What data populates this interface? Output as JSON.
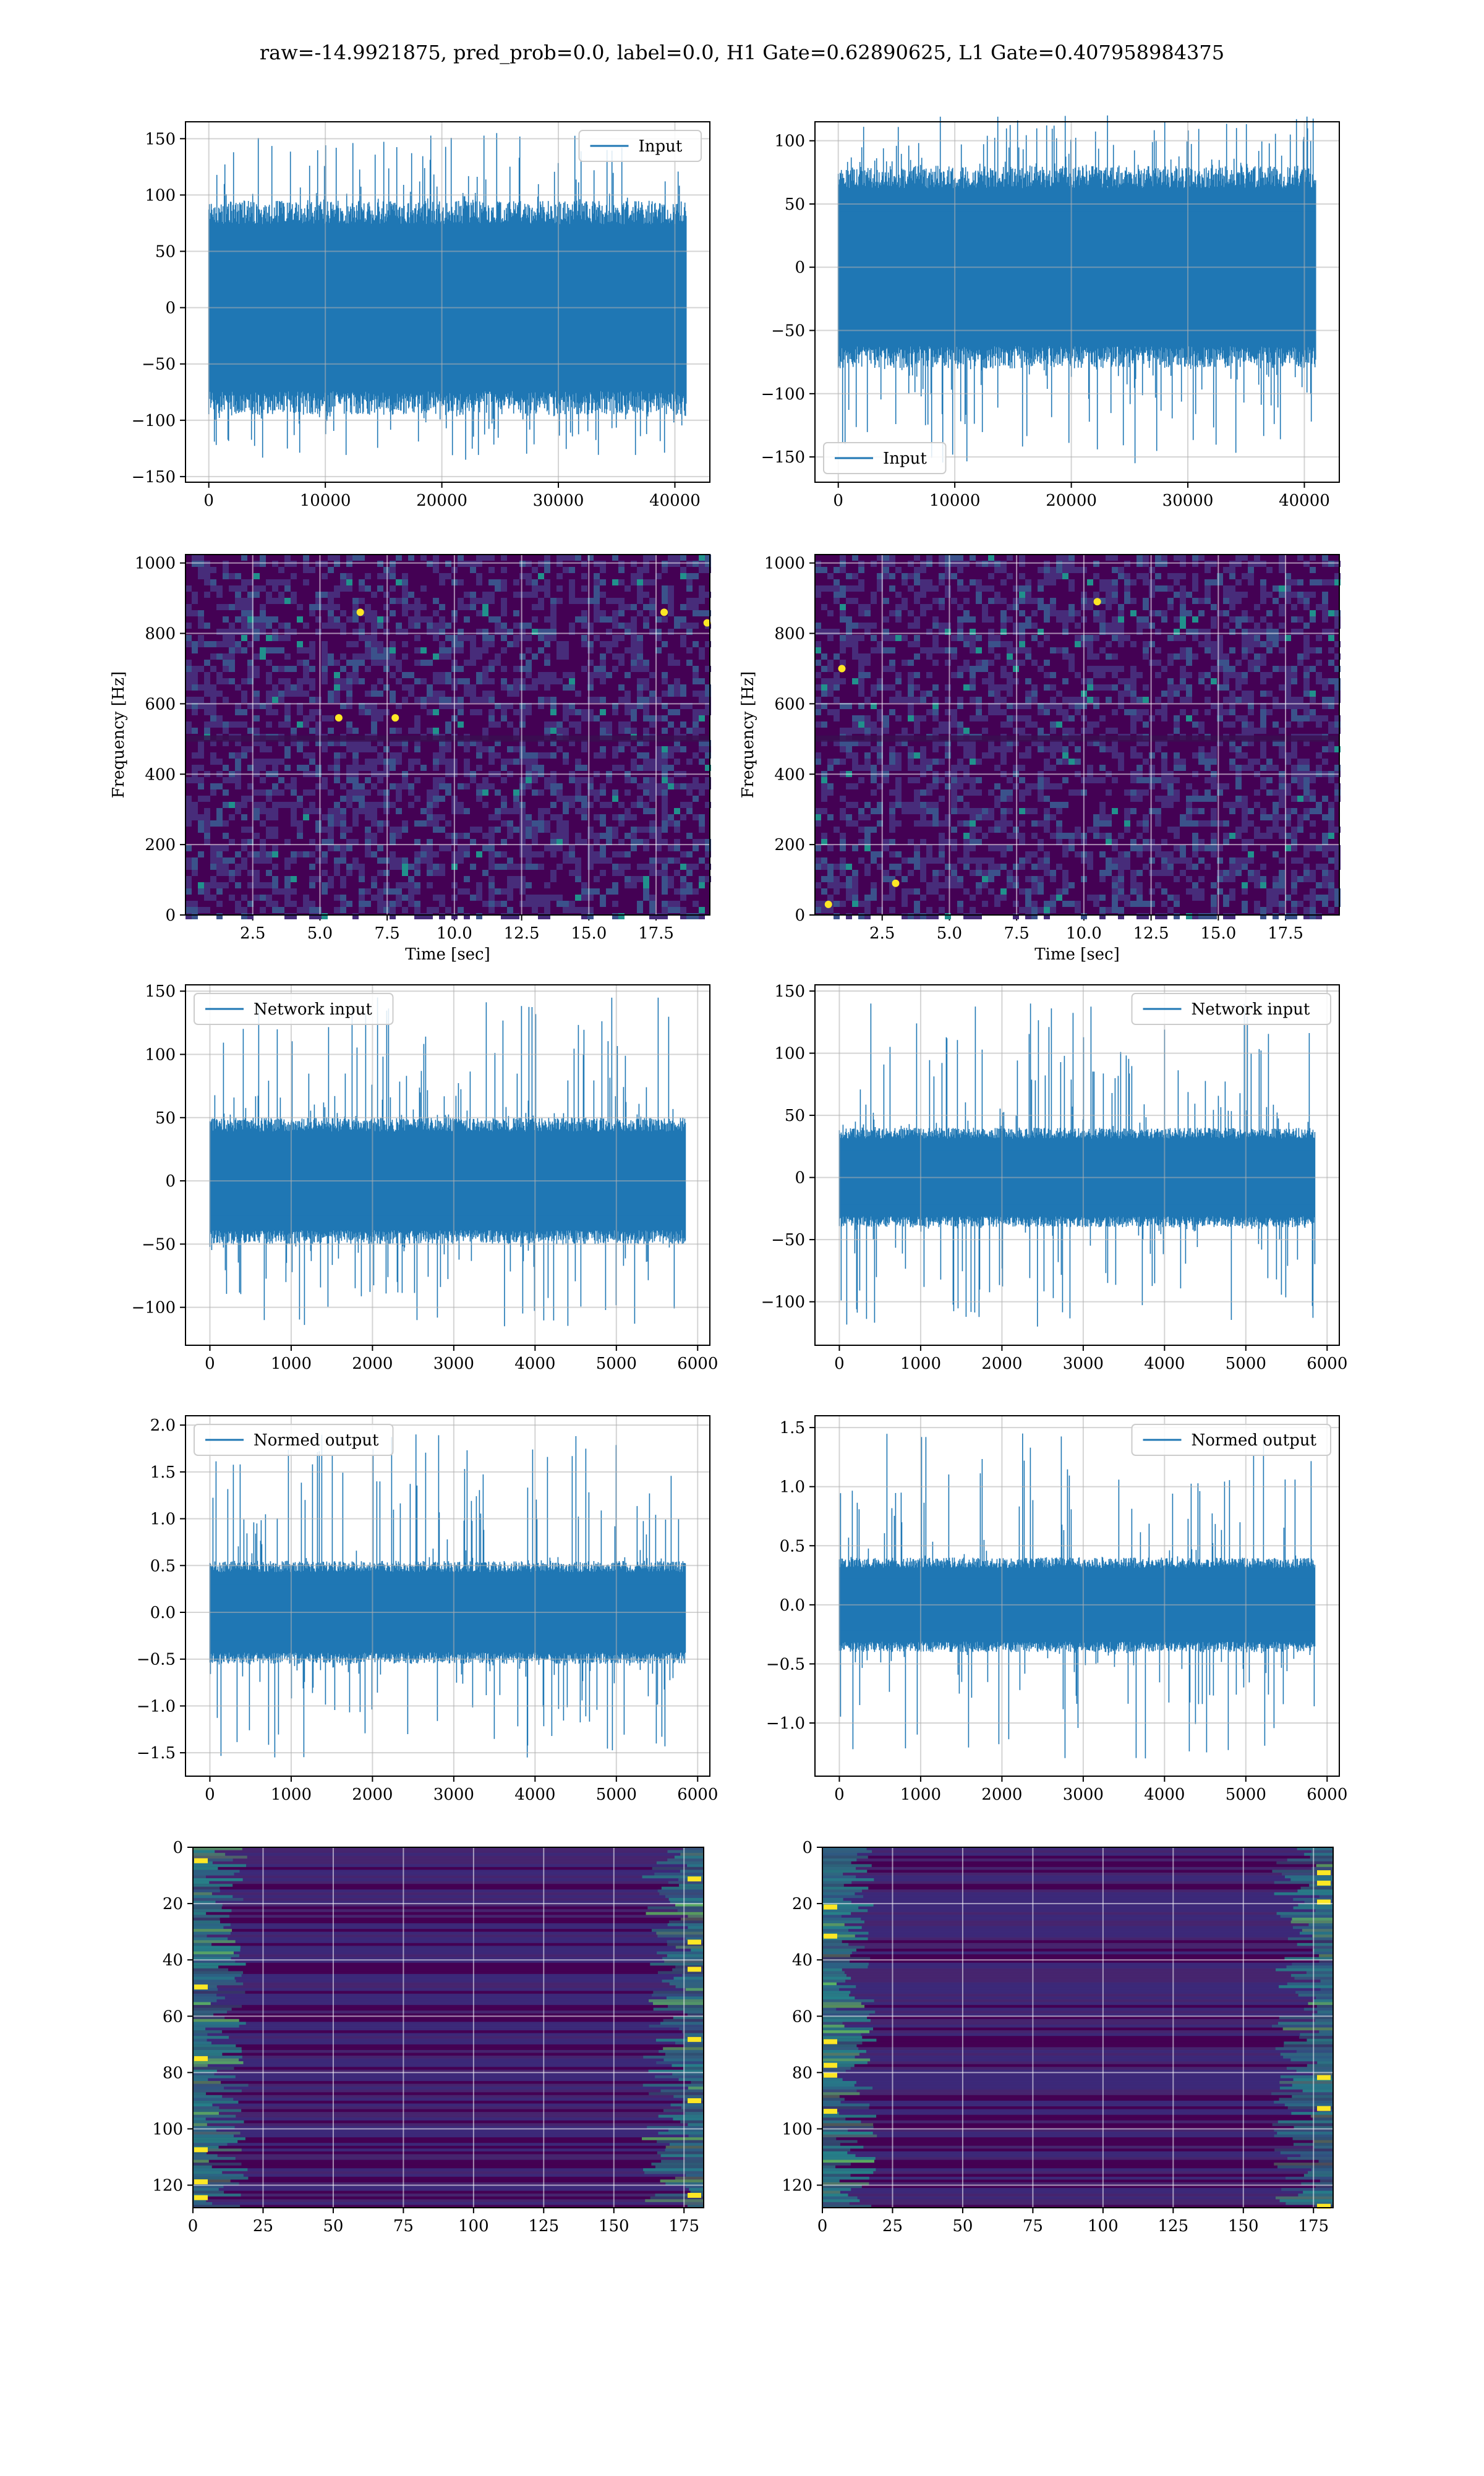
{
  "figure": {
    "suptitle": "raw=-14.9921875, pred_prob=0.0, label=0.0, H1 Gate=0.62890625, L1 Gate=0.407958984375"
  },
  "colors": {
    "line": "#1f77b4",
    "grid": "#b0b0b0",
    "viridis": [
      "#440154",
      "#3b528b",
      "#21918c",
      "#5ec962",
      "#fde725"
    ]
  },
  "chart_data": [
    {
      "id": "h1-input",
      "type": "line",
      "series": [
        {
          "name": "Input",
          "style": "dense noise",
          "n": 40960,
          "y_typical_range": [
            -95,
            95
          ],
          "y_min": -135,
          "y_max": 155
        }
      ],
      "xlim": [
        -2000,
        43000
      ],
      "ylim": [
        -155,
        165
      ],
      "xticks": [
        0,
        10000,
        20000,
        30000,
        40000
      ],
      "yticks": [
        -150,
        -100,
        -50,
        0,
        50,
        100,
        150
      ],
      "legend": "upper right",
      "grid": true,
      "xlabel": "",
      "ylabel": ""
    },
    {
      "id": "l1-input",
      "type": "line",
      "series": [
        {
          "name": "Input",
          "style": "dense noise",
          "n": 40960,
          "y_typical_range": [
            -80,
            80
          ],
          "y_min": -155,
          "y_max": 120
        }
      ],
      "xlim": [
        -2000,
        43000
      ],
      "ylim": [
        -170,
        115
      ],
      "xticks": [
        0,
        10000,
        20000,
        30000,
        40000
      ],
      "yticks": [
        -150,
        -100,
        -50,
        0,
        50,
        100
      ],
      "legend": "lower left",
      "grid": true,
      "xlabel": "",
      "ylabel": ""
    },
    {
      "id": "h1-spectrogram",
      "type": "heatmap",
      "colormap": "viridis",
      "xlim": [
        0,
        19.5
      ],
      "ylim": [
        0,
        1024
      ],
      "xticks": [
        2.5,
        5.0,
        7.5,
        10.0,
        12.5,
        15.0,
        17.5
      ],
      "yticks": [
        0,
        200,
        400,
        600,
        800,
        1000
      ],
      "xlabel": "Time [sec]",
      "ylabel": "Frequency [Hz]",
      "grid": true,
      "hot_spots": [
        [
          6.5,
          860
        ],
        [
          7.8,
          560
        ],
        [
          17.8,
          860
        ],
        [
          19.4,
          830
        ],
        [
          5.7,
          560
        ]
      ]
    },
    {
      "id": "l1-spectrogram",
      "type": "heatmap",
      "colormap": "viridis",
      "xlim": [
        0,
        19.5
      ],
      "ylim": [
        0,
        1024
      ],
      "xticks": [
        2.5,
        5.0,
        7.5,
        10.0,
        12.5,
        15.0,
        17.5
      ],
      "yticks": [
        0,
        200,
        400,
        600,
        800,
        1000
      ],
      "xlabel": "Time [sec]",
      "ylabel": "Frequency [Hz]",
      "grid": true,
      "hot_spots": [
        [
          0.5,
          30
        ],
        [
          10.5,
          890
        ],
        [
          1.0,
          700
        ],
        [
          3.0,
          90
        ]
      ]
    },
    {
      "id": "h1-network-input",
      "type": "line",
      "series": [
        {
          "name": "Network input",
          "style": "dense noise",
          "n": 5850,
          "y_typical_range": [
            -50,
            50
          ],
          "y_min": -115,
          "y_max": 145
        }
      ],
      "xlim": [
        -300,
        6150
      ],
      "ylim": [
        -130,
        155
      ],
      "xticks": [
        0,
        1000,
        2000,
        3000,
        4000,
        5000,
        6000
      ],
      "yticks": [
        -100,
        -50,
        0,
        50,
        100,
        150
      ],
      "legend": "upper left",
      "grid": true,
      "xlabel": "",
      "ylabel": ""
    },
    {
      "id": "l1-network-input",
      "type": "line",
      "series": [
        {
          "name": "Network input",
          "style": "dense noise",
          "n": 5850,
          "y_typical_range": [
            -40,
            40
          ],
          "y_min": -120,
          "y_max": 140
        }
      ],
      "xlim": [
        -300,
        6150
      ],
      "ylim": [
        -135,
        155
      ],
      "xticks": [
        0,
        1000,
        2000,
        3000,
        4000,
        5000,
        6000
      ],
      "yticks": [
        -100,
        -50,
        0,
        50,
        100,
        150
      ],
      "legend": "upper right",
      "grid": true,
      "xlabel": "",
      "ylabel": ""
    },
    {
      "id": "h1-normed-output",
      "type": "line",
      "series": [
        {
          "name": "Normed output",
          "style": "dense noise",
          "n": 5850,
          "y_typical_range": [
            -0.55,
            0.55
          ],
          "y_min": -1.55,
          "y_max": 1.9
        }
      ],
      "xlim": [
        -300,
        6150
      ],
      "ylim": [
        -1.75,
        2.1
      ],
      "xticks": [
        0,
        1000,
        2000,
        3000,
        4000,
        5000,
        6000
      ],
      "yticks": [
        -1.5,
        -1.0,
        -0.5,
        0.0,
        0.5,
        1.0,
        1.5,
        2.0
      ],
      "legend": "upper left",
      "grid": true,
      "xlabel": "",
      "ylabel": ""
    },
    {
      "id": "l1-normed-output",
      "type": "line",
      "series": [
        {
          "name": "Normed output",
          "style": "dense noise",
          "n": 5850,
          "y_typical_range": [
            -0.4,
            0.4
          ],
          "y_min": -1.3,
          "y_max": 1.45
        }
      ],
      "xlim": [
        -300,
        6150
      ],
      "ylim": [
        -1.45,
        1.6
      ],
      "xticks": [
        0,
        1000,
        2000,
        3000,
        4000,
        5000,
        6000
      ],
      "yticks": [
        -1.0,
        -0.5,
        0.0,
        0.5,
        1.0,
        1.5
      ],
      "legend": "upper right",
      "grid": true,
      "xlabel": "",
      "ylabel": ""
    },
    {
      "id": "h1-feature-map",
      "type": "heatmap",
      "colormap": "viridis",
      "rows": 128,
      "cols": 182,
      "xlim": [
        0,
        182
      ],
      "ylim_inverted": [
        0,
        128
      ],
      "xticks": [
        0,
        25,
        50,
        75,
        100,
        125,
        150,
        175
      ],
      "yticks": [
        0,
        20,
        40,
        60,
        80,
        100,
        120
      ],
      "grid": true,
      "xlabel": "",
      "ylabel": "",
      "bright_edges": [
        "left",
        "right"
      ]
    },
    {
      "id": "l1-feature-map",
      "type": "heatmap",
      "colormap": "viridis",
      "rows": 128,
      "cols": 182,
      "xlim": [
        0,
        182
      ],
      "ylim_inverted": [
        0,
        128
      ],
      "xticks": [
        0,
        25,
        50,
        75,
        100,
        125,
        150,
        175
      ],
      "yticks": [
        0,
        20,
        40,
        60,
        80,
        100,
        120
      ],
      "grid": true,
      "xlabel": "",
      "ylabel": "",
      "bright_edges": [
        "left",
        "right"
      ]
    }
  ]
}
